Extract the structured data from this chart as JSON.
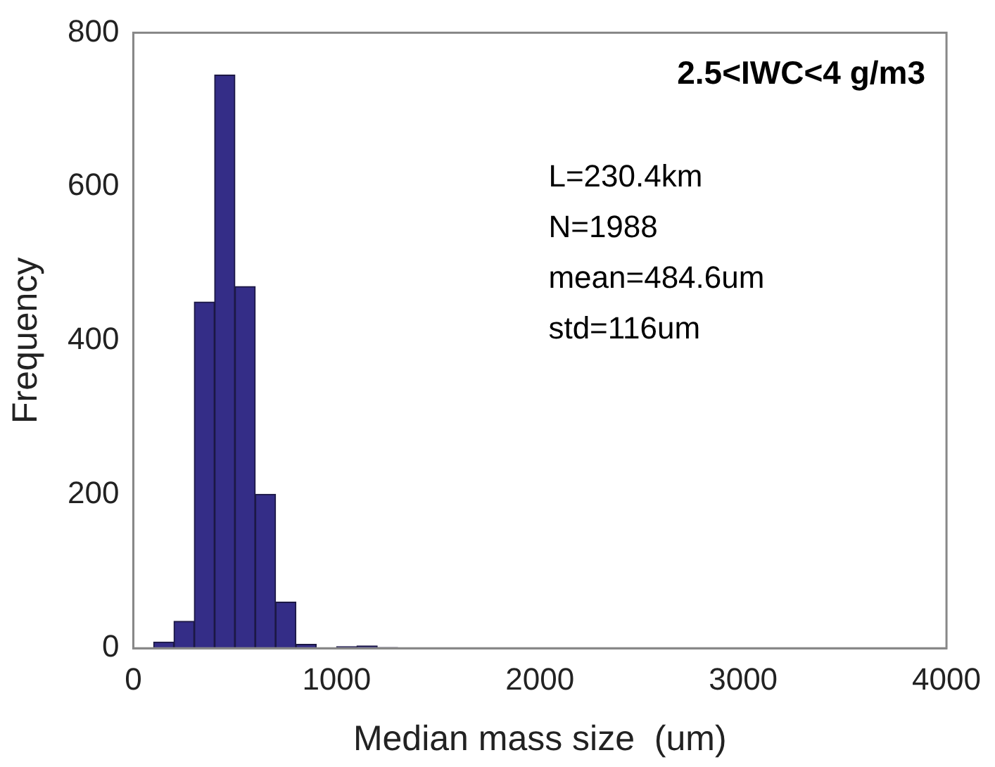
{
  "chart_data": {
    "type": "histogram",
    "title": "2.5<IWC<4 g/m3",
    "xlabel": "Median mass size  (um)",
    "ylabel": "Frequency",
    "bins": [
      0,
      100,
      200,
      300,
      400,
      500,
      600,
      700,
      800,
      900,
      1000,
      1100,
      1200,
      1300
    ],
    "values": [
      0,
      8,
      35,
      450,
      745,
      470,
      200,
      60,
      5,
      0,
      2,
      3,
      1
    ],
    "color": "#342d87",
    "xlim": [
      0,
      4000
    ],
    "xticks": [
      0,
      1000,
      2000,
      3000,
      4000
    ],
    "ylim": [
      0,
      800
    ],
    "yticks": [
      0,
      200,
      400,
      600,
      800
    ],
    "grid": false,
    "legend": false,
    "annotations": [
      "L=230.4km",
      "N=1988",
      "mean=484.6um",
      "std=116um"
    ]
  }
}
